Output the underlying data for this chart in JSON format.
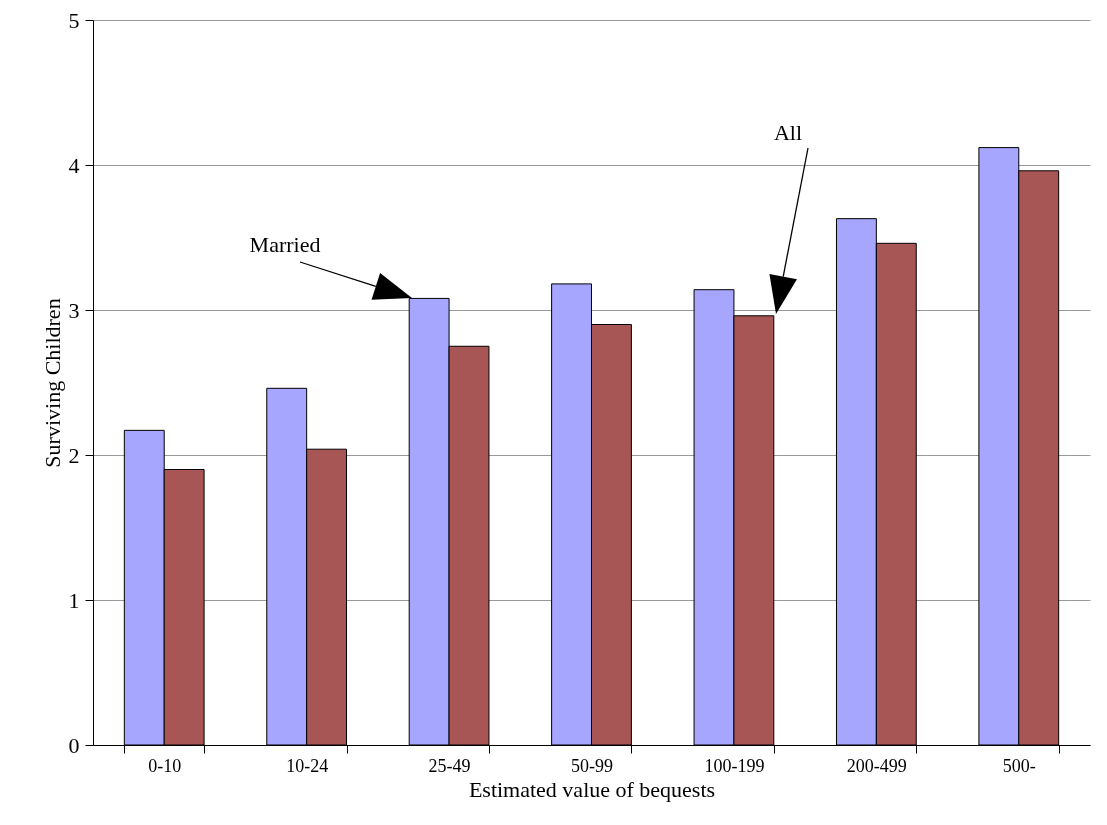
{
  "chart_data": {
    "type": "bar",
    "xlabel": "Estimated value of bequests",
    "ylabel": "Surviving Children",
    "categories": [
      "0-10",
      "10-24",
      "25-49",
      "50-99",
      "100-199",
      "200-499",
      "500-"
    ],
    "series": [
      {
        "color": "#a6a6ff",
        "values": [
          2.17,
          2.46,
          3.08,
          3.18,
          3.14,
          3.63,
          4.12
        ]
      },
      {
        "color": "#a85555",
        "values": [
          1.9,
          2.04,
          2.75,
          2.9,
          2.96,
          3.46,
          3.96
        ]
      }
    ],
    "ylim": [
      0,
      5
    ],
    "yticks": [
      0,
      1,
      2,
      3,
      4,
      5
    ],
    "grid": "y",
    "annotations": [
      "Married",
      "All"
    ]
  }
}
